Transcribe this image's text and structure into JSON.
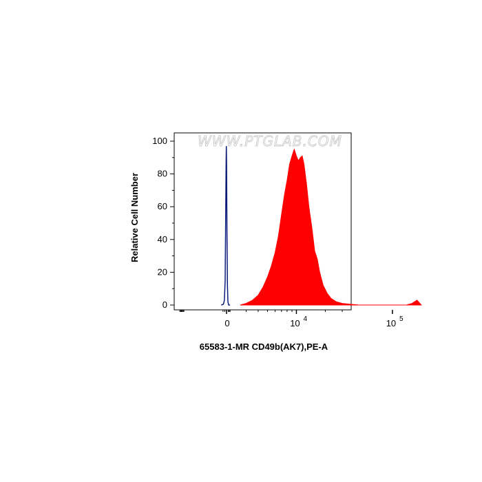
{
  "watermark": "WWW.PTGLAB.COM",
  "chart_data": {
    "type": "area",
    "xlabel": "65583-1-MR CD49b(AK7),PE-A",
    "ylabel": "Relative Cell Number",
    "x_scale": "biexponential",
    "ylim": [
      0,
      105
    ],
    "y_ticks": [
      0,
      20,
      40,
      60,
      80,
      100
    ],
    "x_ticks": [
      {
        "base": "0",
        "exp": ""
      },
      {
        "base": "10",
        "exp": "4"
      },
      {
        "base": "10",
        "exp": "5"
      }
    ],
    "grid": false,
    "series": [
      {
        "color": "#0a1a7a",
        "fill": "none",
        "points": [
          [
            -300,
            0
          ],
          [
            -180,
            0.5
          ],
          [
            -120,
            3
          ],
          [
            -80,
            15
          ],
          [
            -50,
            50
          ],
          [
            -25,
            88
          ],
          [
            -10,
            97
          ],
          [
            5,
            85
          ],
          [
            25,
            45
          ],
          [
            50,
            12
          ],
          [
            80,
            2
          ],
          [
            120,
            0
          ],
          [
            200,
            0
          ]
        ]
      },
      {
        "color": "#ff0000",
        "fill": "#ff0000",
        "points": [
          [
            2600,
            0
          ],
          [
            3000,
            1
          ],
          [
            3500,
            3
          ],
          [
            4000,
            6
          ],
          [
            4500,
            11
          ],
          [
            5000,
            17
          ],
          [
            5500,
            24
          ],
          [
            6000,
            32
          ],
          [
            6500,
            42
          ],
          [
            7000,
            55
          ],
          [
            7500,
            67
          ],
          [
            8000,
            76
          ],
          [
            8500,
            86
          ],
          [
            9000,
            91
          ],
          [
            9500,
            95
          ],
          [
            10000,
            91
          ],
          [
            10500,
            88
          ],
          [
            11000,
            90
          ],
          [
            11500,
            91
          ],
          [
            12000,
            86
          ],
          [
            12800,
            73
          ],
          [
            13500,
            60
          ],
          [
            14500,
            47
          ],
          [
            15500,
            33
          ],
          [
            16500,
            28
          ],
          [
            17500,
            20
          ],
          [
            19000,
            12
          ],
          [
            21000,
            7
          ],
          [
            23000,
            4
          ],
          [
            26000,
            2
          ],
          [
            30000,
            1
          ],
          [
            36000,
            0.5
          ],
          [
            45000,
            0
          ],
          [
            140000,
            0
          ],
          [
            160000,
            1
          ],
          [
            180000,
            3
          ],
          [
            200000,
            0
          ]
        ]
      }
    ]
  }
}
